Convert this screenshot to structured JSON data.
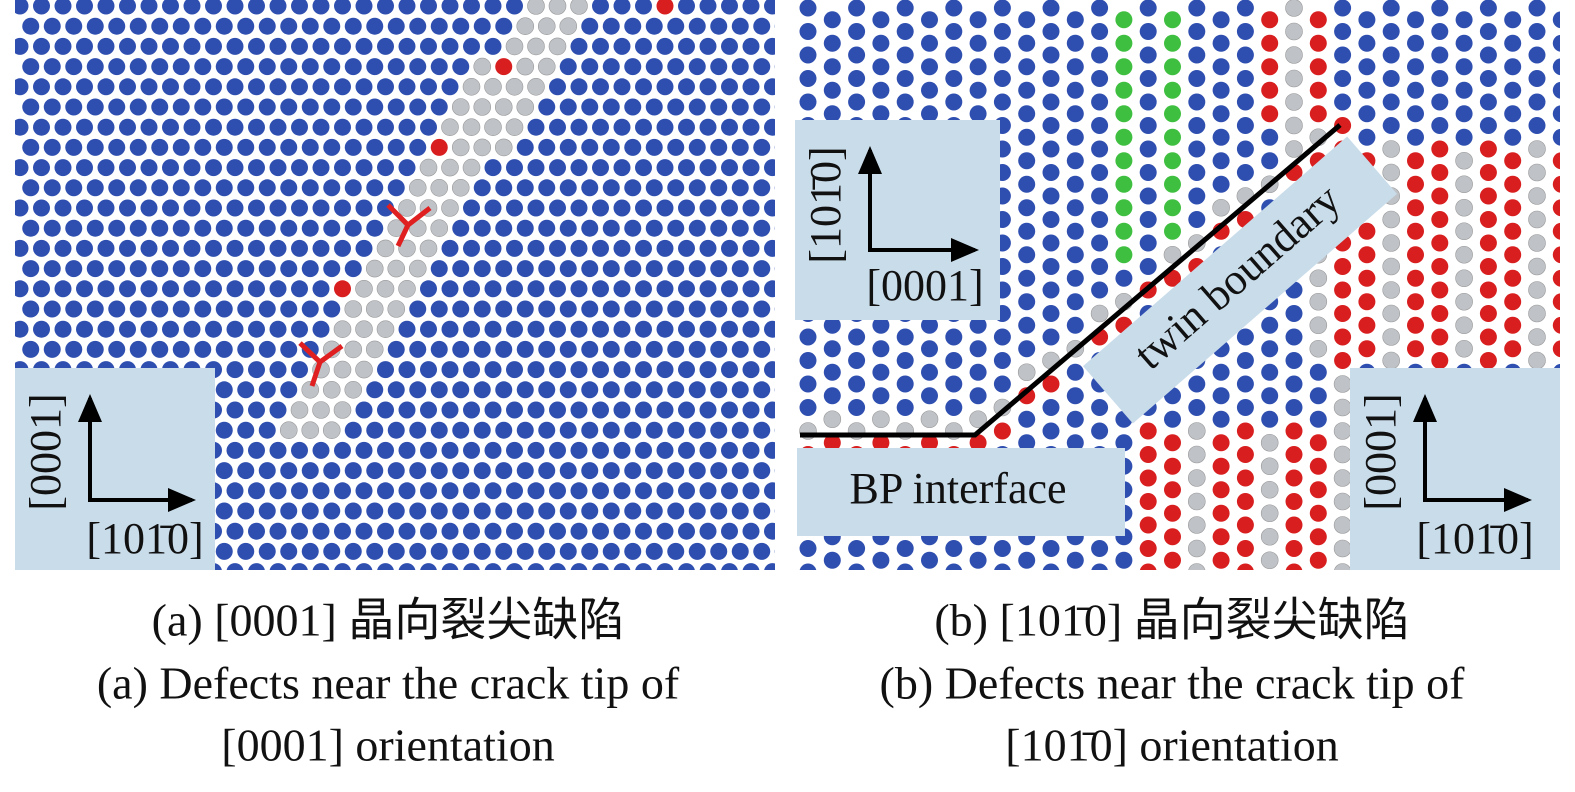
{
  "panel_a": {
    "axis_vertical": "[0001]",
    "axis_horizontal": "[101̄0]",
    "caption_cn": "(a) [0001] 晶向裂尖缺陷",
    "caption_en_line1": "(a) Defects near the crack tip of",
    "caption_en_line2": "[0001] orientation"
  },
  "panel_b": {
    "inset_top_vertical": "[101̄0]",
    "inset_top_horizontal": "[0001]",
    "inset_bottom_vertical": "[0001]",
    "inset_bottom_horizontal": "[101̄0]",
    "label_twin": "twin boundary",
    "label_interface": "BP interface",
    "caption_cn": "(b) [101̄0] 晶向裂尖缺陷",
    "caption_en_line1": "(b) Defects near the crack tip of",
    "caption_en_line2": "[101̄0] orientation"
  }
}
